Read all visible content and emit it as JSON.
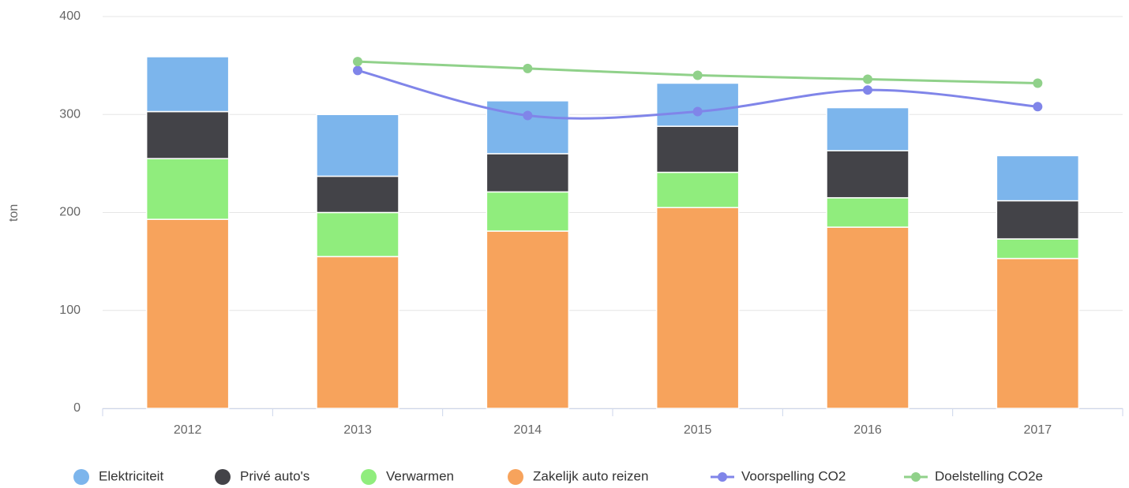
{
  "chart_data": {
    "type": "bar",
    "stacked": true,
    "y_label": "ton",
    "categories": [
      "2012",
      "2013",
      "2014",
      "2015",
      "2016",
      "2017"
    ],
    "series": [
      {
        "name": "Elektriciteit",
        "color": "#7cb5ec",
        "type": "bar",
        "values": [
          56,
          63,
          54,
          44,
          44,
          46
        ]
      },
      {
        "name": "Privé auto's",
        "color": "#434348",
        "type": "bar",
        "values": [
          48,
          37,
          39,
          47,
          48,
          39
        ]
      },
      {
        "name": "Verwarmen",
        "color": "#90ed7d",
        "type": "bar",
        "values": [
          62,
          45,
          40,
          36,
          30,
          20
        ]
      },
      {
        "name": "Zakelijk auto reizen",
        "color": "#f7a35c",
        "type": "bar",
        "values": [
          193,
          155,
          181,
          205,
          185,
          153
        ]
      },
      {
        "name": "Voorspelling CO2",
        "color": "#8085e9",
        "type": "line",
        "values": [
          null,
          345,
          299,
          303,
          325,
          308
        ]
      },
      {
        "name": "Doelstelling CO2e",
        "color": "#90d18a",
        "type": "line",
        "values": [
          null,
          354,
          347,
          340,
          336,
          332
        ]
      }
    ],
    "ylim": [
      0,
      400
    ],
    "yticks": [
      0,
      100,
      200,
      300,
      400
    ],
    "grid": true,
    "legend": "bottom"
  }
}
